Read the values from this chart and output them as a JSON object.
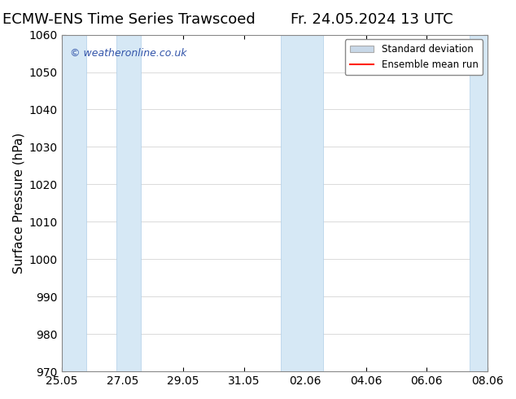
{
  "title_left": "ECMW-ENS Time Series Trawscoed",
  "title_right": "Fr. 24.05.2024 13 UTC",
  "ylabel": "Surface Pressure (hPa)",
  "ylim": [
    970,
    1060
  ],
  "yticks": [
    970,
    980,
    990,
    1000,
    1010,
    1020,
    1030,
    1040,
    1050,
    1060
  ],
  "xlim_start": "2024-05-25",
  "xlim_end": "2024-08-07",
  "xtick_labels": [
    "25.05",
    "27.05",
    "29.05",
    "31.05",
    "02.06",
    "04.06",
    "06.06",
    "08.06"
  ],
  "xtick_positions": [
    0,
    2,
    4,
    6,
    8,
    10,
    12,
    14
  ],
  "shaded_bands": [
    {
      "x_start": 0,
      "x_end": 0.8
    },
    {
      "x_start": 1.8,
      "x_end": 2.6
    },
    {
      "x_start": 7.2,
      "x_end": 8.6
    },
    {
      "x_start": 13.4,
      "x_end": 14.2
    }
  ],
  "band_color": "#d6e8f5",
  "band_edge_color": "#b0cfe8",
  "background_color": "#ffffff",
  "plot_bg_color": "#ffffff",
  "watermark_text": "© weatheronline.co.uk",
  "watermark_color": "#3355aa",
  "legend_std_label": "Standard deviation",
  "legend_mean_label": "Ensemble mean run",
  "legend_std_color": "#c8d8e8",
  "legend_mean_color": "#ff2200",
  "title_fontsize": 13,
  "tick_fontsize": 10,
  "ylabel_fontsize": 11
}
